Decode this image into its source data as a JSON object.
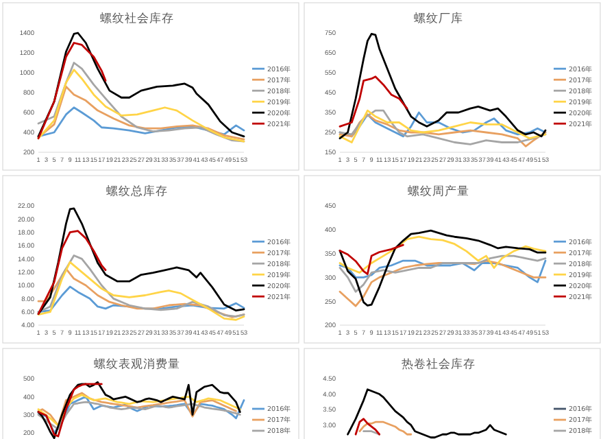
{
  "chart_data": [
    {
      "type": "line",
      "title": "螺纹社会库存",
      "xlim": [
        1,
        53
      ],
      "xticks": [
        1,
        3,
        5,
        7,
        9,
        11,
        13,
        15,
        17,
        19,
        21,
        23,
        25,
        27,
        29,
        31,
        33,
        35,
        37,
        39,
        41,
        43,
        45,
        47,
        49,
        51,
        53
      ],
      "ylim": [
        200,
        1400
      ],
      "yticks": [
        200,
        400,
        600,
        800,
        1000,
        1200,
        1400
      ],
      "legend": "right",
      "series": [
        {
          "name": "2016年",
          "color": "#5b9bd5",
          "x": [
            1,
            5,
            8,
            10,
            12,
            15,
            17,
            20,
            24,
            28,
            32,
            36,
            40,
            44,
            48,
            51,
            53
          ],
          "values": [
            360,
            400,
            580,
            650,
            600,
            520,
            450,
            440,
            420,
            390,
            420,
            450,
            460,
            420,
            380,
            470,
            420
          ]
        },
        {
          "name": "2017年",
          "color": "#e8a060",
          "x": [
            1,
            5,
            8,
            10,
            13,
            16,
            20,
            24,
            28,
            32,
            36,
            40,
            44,
            48,
            53
          ],
          "values": [
            350,
            480,
            860,
            780,
            720,
            620,
            540,
            470,
            440,
            440,
            460,
            470,
            440,
            370,
            330
          ]
        },
        {
          "name": "2018年",
          "color": "#a5a5a5",
          "x": [
            1,
            5,
            8,
            10,
            12,
            15,
            18,
            22,
            26,
            30,
            34,
            38,
            42,
            46,
            50,
            53
          ],
          "values": [
            490,
            560,
            900,
            1100,
            1040,
            880,
            740,
            560,
            450,
            410,
            420,
            440,
            450,
            380,
            320,
            310
          ]
        },
        {
          "name": "2019年",
          "color": "#ffd447",
          "x": [
            1,
            5,
            8,
            10,
            12,
            15,
            18,
            22,
            26,
            30,
            33,
            36,
            40,
            44,
            48,
            53
          ],
          "values": [
            340,
            520,
            900,
            1030,
            940,
            780,
            660,
            570,
            580,
            620,
            650,
            620,
            520,
            430,
            350,
            310
          ]
        },
        {
          "name": "2020年",
          "color": "#000000",
          "x": [
            1,
            5,
            8,
            10,
            11,
            13,
            16,
            19,
            22,
            24,
            27,
            31,
            35,
            38,
            40,
            41,
            44,
            47,
            50,
            53
          ],
          "values": [
            360,
            710,
            1210,
            1390,
            1400,
            1300,
            1040,
            820,
            750,
            750,
            820,
            860,
            870,
            890,
            850,
            790,
            680,
            510,
            400,
            360
          ]
        },
        {
          "name": "2021年",
          "color": "#c00000",
          "x": [
            1,
            5,
            8,
            10,
            12,
            15,
            17,
            18
          ],
          "values": [
            340,
            710,
            1160,
            1300,
            1280,
            1160,
            1020,
            920
          ]
        }
      ]
    },
    {
      "type": "line",
      "title": "螺纹厂库",
      "xlim": [
        1,
        53
      ],
      "xticks": [
        1,
        3,
        5,
        7,
        9,
        11,
        13,
        15,
        17,
        19,
        21,
        23,
        25,
        27,
        29,
        31,
        33,
        35,
        37,
        39,
        41,
        43,
        45,
        47,
        49,
        51,
        53
      ],
      "ylim": [
        150,
        750
      ],
      "yticks": [
        150,
        250,
        350,
        450,
        550,
        650,
        750
      ],
      "legend": "right",
      "series": [
        {
          "name": "2016年",
          "color": "#5b9bd5",
          "x": [
            1,
            4,
            6,
            8,
            10,
            13,
            15,
            17,
            19,
            21,
            23,
            26,
            29,
            32,
            35,
            38,
            40,
            43,
            46,
            49,
            51,
            53
          ],
          "values": [
            250,
            230,
            280,
            340,
            300,
            270,
            250,
            230,
            280,
            350,
            300,
            300,
            270,
            250,
            260,
            300,
            320,
            260,
            240,
            250,
            270,
            250
          ]
        },
        {
          "name": "2017年",
          "color": "#e8a060",
          "x": [
            1,
            4,
            6,
            8,
            10,
            13,
            16,
            19,
            22,
            26,
            30,
            34,
            38,
            42,
            46,
            48,
            50,
            53
          ],
          "values": [
            240,
            230,
            300,
            340,
            310,
            290,
            260,
            250,
            250,
            240,
            250,
            260,
            250,
            240,
            220,
            180,
            210,
            250
          ]
        },
        {
          "name": "2018年",
          "color": "#a5a5a5",
          "x": [
            1,
            4,
            7,
            10,
            12,
            14,
            16,
            18,
            22,
            26,
            30,
            34,
            38,
            42,
            46,
            50,
            53
          ],
          "values": [
            250,
            240,
            320,
            360,
            360,
            300,
            250,
            230,
            240,
            220,
            200,
            190,
            210,
            200,
            200,
            220,
            240
          ]
        },
        {
          "name": "2019年",
          "color": "#ffd447",
          "x": [
            1,
            4,
            6,
            8,
            10,
            13,
            16,
            19,
            22,
            26,
            30,
            34,
            38,
            42,
            46,
            49,
            53
          ],
          "values": [
            230,
            200,
            280,
            360,
            330,
            300,
            300,
            260,
            250,
            260,
            280,
            300,
            290,
            290,
            250,
            220,
            240
          ]
        },
        {
          "name": "2020年",
          "color": "#000000",
          "x": [
            1,
            3,
            5,
            7,
            8,
            9,
            10,
            11,
            13,
            15,
            17,
            19,
            21,
            23,
            26,
            28,
            31,
            34,
            36,
            39,
            41,
            43,
            46,
            48,
            50,
            52,
            53
          ],
          "values": [
            220,
            250,
            420,
            620,
            710,
            745,
            740,
            670,
            570,
            470,
            400,
            330,
            300,
            280,
            310,
            350,
            350,
            370,
            380,
            360,
            370,
            330,
            260,
            240,
            250,
            230,
            260
          ]
        },
        {
          "name": "2021年",
          "color": "#c00000",
          "x": [
            1,
            4,
            6,
            7,
            9,
            10,
            12,
            14,
            16,
            18
          ],
          "values": [
            280,
            300,
            420,
            510,
            520,
            530,
            490,
            440,
            420,
            370
          ]
        }
      ]
    },
    {
      "type": "line",
      "title": "螺纹总库存",
      "xlim": [
        1,
        53
      ],
      "xticks": [
        1,
        3,
        5,
        7,
        9,
        11,
        13,
        15,
        17,
        19,
        21,
        23,
        25,
        27,
        29,
        31,
        33,
        35,
        37,
        39,
        41,
        43,
        45,
        47,
        49,
        51,
        53
      ],
      "ylim": [
        4,
        22
      ],
      "yticks": [
        {
          "value": 4,
          "label": "4.00"
        },
        {
          "value": 6,
          "label": "6.00"
        },
        {
          "value": 8,
          "label": "8.00"
        },
        {
          "value": 10,
          "label": "10.00"
        },
        {
          "value": 12,
          "label": "12.00"
        },
        {
          "value": 14,
          "label": "14.00"
        },
        {
          "value": 16,
          "label": "16.00"
        },
        {
          "value": 18,
          "label": "18.00"
        },
        {
          "value": 20,
          "label": "20.00"
        },
        {
          "value": 22,
          "label": "22.00"
        }
      ],
      "legend": "right",
      "series": [
        {
          "name": "2016年",
          "color": "#5b9bd5",
          "x": [
            1,
            4,
            7,
            9,
            11,
            14,
            16,
            18,
            20,
            24,
            28,
            32,
            36,
            40,
            44,
            48,
            51,
            53
          ],
          "values": [
            6.0,
            6.2,
            8.5,
            9.8,
            9.0,
            8.0,
            6.8,
            6.5,
            7.0,
            6.8,
            6.5,
            6.5,
            6.8,
            7.0,
            6.6,
            6.5,
            7.3,
            6.6
          ]
        },
        {
          "name": "2017年",
          "color": "#e8a060",
          "x": [
            1,
            3,
            5,
            8,
            10,
            13,
            16,
            19,
            22,
            26,
            30,
            34,
            38,
            42,
            46,
            50,
            53
          ],
          "values": [
            7.6,
            7.6,
            9.5,
            12.5,
            11.0,
            10.0,
            8.5,
            7.5,
            7.0,
            6.5,
            6.5,
            7.0,
            7.2,
            7.0,
            6.0,
            5.2,
            5.6
          ]
        },
        {
          "name": "2018年",
          "color": "#a5a5a5",
          "x": [
            1,
            4,
            7,
            10,
            12,
            14,
            17,
            20,
            24,
            28,
            32,
            36,
            40,
            44,
            48,
            51,
            53
          ],
          "values": [
            6.0,
            6.8,
            11.5,
            14.5,
            14.0,
            12.5,
            10.0,
            8.0,
            7.0,
            6.5,
            6.3,
            6.5,
            7.5,
            6.8,
            5.5,
            5.3,
            5.6
          ]
        },
        {
          "name": "2019年",
          "color": "#ffd447",
          "x": [
            1,
            4,
            7,
            9,
            11,
            14,
            17,
            20,
            24,
            28,
            32,
            34,
            37,
            40,
            44,
            48,
            51,
            53
          ],
          "values": [
            5.6,
            6.0,
            11.0,
            13.5,
            12.5,
            11.0,
            9.5,
            8.5,
            8.2,
            8.5,
            9.0,
            9.2,
            8.8,
            7.8,
            6.5,
            5.0,
            4.8,
            5.3
          ]
        },
        {
          "name": "2020年",
          "color": "#000000",
          "x": [
            1,
            4,
            6,
            8,
            9,
            10,
            12,
            14,
            16,
            18,
            21,
            24,
            27,
            30,
            33,
            36,
            39,
            41,
            42,
            45,
            48,
            51,
            53
          ],
          "values": [
            5.7,
            8.2,
            13.4,
            19.3,
            21.5,
            21.6,
            19.3,
            16.3,
            13.4,
            11.6,
            10.6,
            10.6,
            11.6,
            11.9,
            12.3,
            12.7,
            12.3,
            11.2,
            11.9,
            9.7,
            7.1,
            6.2,
            6.4
          ]
        },
        {
          "name": "2021年",
          "color": "#c00000",
          "x": [
            1,
            5,
            7,
            9,
            11,
            13,
            15,
            17,
            18
          ],
          "values": [
            5.7,
            10.5,
            15.6,
            18.0,
            18.2,
            17.1,
            15.2,
            13.0,
            12.3
          ]
        }
      ]
    },
    {
      "type": "line",
      "title": "螺纹周产量",
      "xlim": [
        1,
        53
      ],
      "xticks": [
        1,
        3,
        5,
        7,
        9,
        11,
        13,
        15,
        17,
        19,
        21,
        23,
        25,
        27,
        29,
        31,
        33,
        35,
        37,
        39,
        41,
        43,
        45,
        47,
        49,
        51,
        53
      ],
      "ylim": [
        200,
        450
      ],
      "yticks": [
        200,
        250,
        300,
        350,
        400,
        450
      ],
      "legend": "right",
      "series": [
        {
          "name": "2016年",
          "color": "#5b9bd5",
          "x": [
            1,
            3,
            5,
            7,
            9,
            11,
            14,
            17,
            20,
            23,
            26,
            29,
            32,
            35,
            37,
            40,
            43,
            46,
            49,
            51,
            53
          ],
          "values": [
            325,
            320,
            300,
            300,
            305,
            320,
            325,
            335,
            335,
            325,
            325,
            325,
            330,
            315,
            330,
            330,
            325,
            320,
            300,
            290,
            335
          ]
        },
        {
          "name": "2017年",
          "color": "#e8a060",
          "x": [
            1,
            3,
            5,
            7,
            9,
            11,
            14,
            17,
            20,
            23,
            26,
            29,
            32,
            35,
            38,
            41,
            44,
            47,
            50,
            53
          ],
          "values": [
            270,
            255,
            240,
            260,
            290,
            300,
            310,
            320,
            325,
            328,
            330,
            330,
            330,
            328,
            335,
            330,
            320,
            310,
            300,
            300
          ]
        },
        {
          "name": "2018年",
          "color": "#a5a5a5",
          "x": [
            1,
            3,
            5,
            7,
            9,
            12,
            15,
            18,
            21,
            24,
            27,
            30,
            33,
            36,
            39,
            42,
            45,
            48,
            51,
            53
          ],
          "values": [
            320,
            300,
            270,
            285,
            310,
            315,
            310,
            315,
            320,
            320,
            330,
            330,
            330,
            330,
            340,
            345,
            345,
            340,
            335,
            340
          ]
        },
        {
          "name": "2019年",
          "color": "#ffd447",
          "x": [
            1,
            3,
            6,
            9,
            12,
            15,
            18,
            21,
            24,
            27,
            30,
            33,
            36,
            38,
            40,
            42,
            45,
            48,
            50,
            53
          ],
          "values": [
            330,
            320,
            310,
            330,
            345,
            360,
            380,
            385,
            380,
            378,
            370,
            355,
            335,
            345,
            320,
            340,
            355,
            365,
            360,
            355
          ]
        },
        {
          "name": "2020年",
          "color": "#000000",
          "x": [
            1,
            3,
            5,
            7,
            8,
            9,
            11,
            13,
            15,
            17,
            19,
            21,
            24,
            26,
            28,
            30,
            33,
            36,
            39,
            41,
            43,
            46,
            49,
            51,
            53
          ],
          "values": [
            356,
            313,
            297,
            248,
            241,
            243,
            280,
            323,
            361,
            377,
            391,
            393,
            398,
            393,
            388,
            385,
            382,
            377,
            368,
            361,
            364,
            361,
            359,
            352,
            352
          ]
        },
        {
          "name": "2021年",
          "color": "#c00000",
          "x": [
            1,
            3,
            5,
            7,
            8,
            9,
            11,
            14,
            17
          ],
          "values": [
            356,
            348,
            334,
            313,
            307,
            345,
            353,
            359,
            368
          ]
        }
      ]
    },
    {
      "type": "line",
      "title": "螺纹表观消费量",
      "categories": [
        null,
        null,
        null,
        null,
        null,
        null,
        null,
        null,
        null,
        null,
        null,
        null,
        null,
        null,
        null,
        null,
        null,
        null,
        null,
        null,
        null,
        null,
        null,
        null,
        null,
        null,
        null,
        null,
        null,
        null,
        null,
        null,
        null,
        null,
        null,
        null,
        null,
        null,
        null,
        null,
        null,
        null,
        null,
        null,
        null,
        null,
        null,
        null,
        null,
        null,
        null,
        null,
        null
      ],
      "ylim": [
        165,
        500
      ],
      "yticks": [
        200,
        300,
        400,
        500
      ],
      "tick_labels": "y",
      "legend": "right",
      "series": [
        {
          "name": "2016年",
          "color": "#5b9bd5",
          "values": [
            310,
            300,
            290,
            245,
            200,
            230,
            260,
            310,
            360,
            370,
            380,
            390,
            400,
            365,
            330,
            340,
            350,
            347,
            343,
            340,
            345,
            350,
            355,
            340,
            330,
            320,
            330,
            340,
            350,
            348,
            346,
            345,
            347,
            348,
            350,
            353,
            357,
            360,
            330,
            300,
            330,
            360,
            357,
            353,
            350,
            343,
            337,
            330,
            315,
            300,
            280,
            330,
            380
          ]
        },
        {
          "name": "2017年",
          "color": "#e8a060",
          "values": [
            320,
            330,
            315,
            300,
            270,
            240,
            310,
            380,
            390,
            400,
            410,
            420,
            405,
            390,
            383,
            377,
            370,
            367,
            363,
            360,
            357,
            353,
            350,
            347,
            343,
            340,
            343,
            347,
            350,
            353,
            357,
            360,
            363,
            367,
            370,
            373,
            377,
            380,
            335,
            290,
            330,
            370,
            373,
            377,
            380,
            370,
            360,
            350,
            340,
            330,
            320,
            null,
            null
          ]
        },
        {
          "name": "2018年",
          "color": "#a5a5a5",
          "values": [
            300,
            283,
            267,
            250,
            235,
            220,
            260,
            300,
            330,
            360,
            363,
            367,
            370,
            367,
            363,
            360,
            353,
            347,
            340,
            337,
            333,
            330,
            333,
            337,
            340,
            337,
            333,
            330,
            337,
            343,
            350,
            347,
            343,
            340,
            343,
            347,
            350,
            353,
            357,
            360,
            353,
            347,
            340,
            337,
            333,
            330,
            327,
            323,
            320,
            313,
            307,
            300,
            null
          ]
        },
        {
          "color": "#ffd447",
          "values": [
            330,
            313,
            297,
            280,
            260,
            240,
            290,
            340,
            365,
            390,
            400,
            410,
            400,
            390,
            380,
            383,
            387,
            390,
            383,
            377,
            370,
            367,
            363,
            360,
            365,
            370,
            375,
            373,
            372,
            370,
            373,
            377,
            380,
            383,
            387,
            390,
            393,
            397,
            400,
            385,
            370,
            377,
            383,
            390,
            387,
            383,
            380,
            370,
            360,
            350,
            340,
            330,
            null
          ]
        },
        {
          "color": "#000000",
          "values": [
            315,
            290,
            250,
            205,
            170,
            235,
            300,
            355,
            410,
            440,
            465,
            470,
            470,
            455,
            465,
            480,
            445,
            410,
            400,
            385,
            390,
            395,
            400,
            390,
            380,
            370,
            375,
            385,
            390,
            385,
            380,
            370,
            380,
            390,
            400,
            395,
            390,
            385,
            465,
            300,
            425,
            440,
            455,
            460,
            465,
            445,
            425,
            420,
            420,
            395,
            370,
            315,
            null
          ]
        },
        {
          "color": "#c00000",
          "values": [
            315,
            305,
            295,
            245,
            190,
            180,
            255,
            330,
            385,
            440,
            455,
            465,
            470,
            470,
            470,
            470,
            470,
            null,
            null,
            null,
            null,
            null,
            null,
            null,
            null,
            null,
            null,
            null,
            null,
            null,
            null,
            null,
            null,
            null,
            null,
            null,
            null,
            null,
            null,
            null,
            null,
            null,
            null,
            null,
            null,
            null,
            null,
            null,
            null,
            null,
            null,
            null,
            null
          ]
        }
      ]
    },
    {
      "type": "line",
      "title": "热卷社会库存",
      "categories": [
        null,
        null,
        null,
        null,
        null,
        null,
        null,
        null,
        null,
        null,
        null,
        null,
        null,
        null,
        null,
        null,
        null,
        null,
        null,
        null,
        null,
        null,
        null,
        null,
        null,
        null,
        null,
        null,
        null,
        null,
        null,
        null,
        null,
        null,
        null,
        null,
        null,
        null,
        null,
        null,
        null
      ],
      "ylim": [
        2.55,
        4.5
      ],
      "yticks": [
        {
          "value": 3,
          "label": "3.00"
        },
        {
          "value": 3.5,
          "label": "3.50"
        },
        {
          "value": 4,
          "label": "4.00"
        },
        {
          "value": 4.5,
          "label": "4.50"
        }
      ],
      "tick_labels": "y",
      "legend": "right",
      "series": [
        {
          "color": "#000000",
          "values": [
            2.7,
            2.95,
            3.2,
            3.5,
            3.8,
            4.15,
            4.1,
            4.05,
            4.0,
            3.9,
            3.75,
            3.6,
            3.45,
            3.35,
            3.25,
            3.1,
            3.0,
            2.8,
            2.75,
            2.7,
            2.65,
            2.6,
            2.6,
            2.65,
            2.7,
            2.7,
            2.75,
            2.75,
            2.7,
            2.7,
            2.7,
            2.7,
            2.75,
            2.75,
            2.8,
            2.85,
            3.0,
            2.85,
            2.8,
            2.75,
            2.7
          ]
        },
        {
          "name": "2016年",
          "color": "#44546a",
          "values": [
            null,
            null,
            null,
            null,
            null,
            null,
            null,
            null,
            null,
            null,
            null,
            null,
            null,
            null,
            null,
            null,
            null,
            null,
            null,
            null,
            null,
            null,
            null,
            null,
            null,
            null,
            null,
            null,
            null,
            null,
            null,
            null,
            null,
            null,
            null,
            null,
            null,
            null,
            null,
            null,
            null
          ]
        },
        {
          "name": "2017年",
          "color": "#e8a060",
          "values": [
            null,
            null,
            null,
            2.8,
            2.95,
            3.05,
            3.05,
            3.1,
            3.1,
            3.1,
            3.05,
            3.0,
            2.95,
            2.85,
            2.8,
            2.7,
            2.7,
            null,
            null,
            null,
            null,
            null,
            null,
            null,
            null,
            null,
            null,
            null,
            null,
            null,
            null,
            null,
            null,
            null,
            null,
            null,
            null,
            null,
            null,
            null,
            null
          ]
        },
        {
          "name": "2018年",
          "color": "#a5a5a5",
          "values": [
            null,
            null,
            null,
            null,
            2.8,
            2.8,
            2.8,
            2.75,
            2.7,
            null,
            null,
            null,
            null,
            null,
            null,
            null,
            null,
            null,
            null,
            null,
            null,
            null,
            null,
            null,
            null,
            null,
            null,
            null,
            null,
            null,
            null,
            null,
            null,
            null,
            null,
            null,
            null,
            null,
            null,
            null,
            null
          ]
        },
        {
          "color": "#c00000",
          "values": [
            null,
            null,
            2.7,
            3.1,
            3.2,
            3.05,
            2.95,
            2.85,
            2.7,
            null,
            null,
            null,
            null,
            null,
            null,
            null,
            null,
            null,
            null,
            null,
            null,
            null,
            null,
            null,
            null,
            null,
            null,
            null,
            null,
            null,
            null,
            null,
            null,
            null,
            null,
            null,
            null,
            null,
            null,
            null,
            null
          ]
        }
      ]
    }
  ]
}
